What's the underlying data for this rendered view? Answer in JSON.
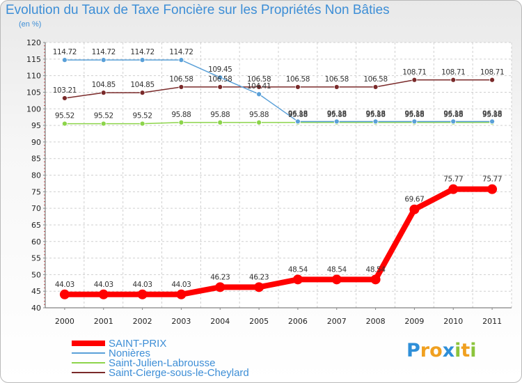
{
  "chart_data": {
    "type": "line",
    "title": "Evolution du Taux de Taxe Foncière sur les Propriétés Non Bâties",
    "subtitle": "(en %)",
    "x": [
      "2000",
      "2001",
      "2002",
      "2003",
      "2004",
      "2005",
      "2006",
      "2007",
      "2008",
      "2009",
      "2010",
      "2011"
    ],
    "ylim": [
      40,
      120
    ],
    "yticks": [
      40,
      45,
      50,
      55,
      60,
      65,
      70,
      75,
      80,
      85,
      90,
      95,
      100,
      105,
      110,
      115,
      120
    ],
    "series": [
      {
        "name": "SAINT-PRIX",
        "color": "#ff0000",
        "values": [
          44.03,
          44.03,
          44.03,
          44.03,
          46.23,
          46.23,
          48.54,
          48.54,
          48.54,
          69.67,
          75.77,
          75.77
        ],
        "labels": [
          "44.03",
          "44.03",
          "44.03",
          "44.03",
          "46.23",
          "46.23",
          "48.54",
          "48.54",
          "48.54",
          "69.67",
          "75.77",
          "75.77"
        ]
      },
      {
        "name": "Nonières",
        "color": "#5aa0d8",
        "values": [
          114.72,
          114.72,
          114.72,
          114.72,
          109.45,
          104.41,
          96.18,
          96.18,
          96.18,
          96.18,
          96.18,
          96.18
        ],
        "labels": [
          "114.72",
          "114.72",
          "114.72",
          "114.72",
          "109.45",
          "104.41",
          "96.18",
          "96.18",
          "96.18",
          "96.18",
          "96.18",
          "96.18"
        ]
      },
      {
        "name": "Saint-Julien-Labrousse",
        "color": "#8cd44a",
        "values": [
          95.52,
          95.52,
          95.52,
          95.88,
          95.88,
          95.88,
          95.88,
          95.88,
          95.88,
          95.88,
          95.88,
          95.88
        ],
        "labels": [
          "95.52",
          "95.52",
          "95.52",
          "95.88",
          "95.88",
          "95.88",
          "95.88",
          "95.88",
          "95.88",
          "95.88",
          "95.88",
          "95.88"
        ]
      },
      {
        "name": "Saint-Cierge-sous-le-Cheylard",
        "color": "#7a2a2a",
        "values": [
          103.21,
          104.85,
          104.85,
          106.58,
          106.58,
          106.58,
          106.58,
          106.58,
          106.58,
          108.71,
          108.71,
          108.71
        ],
        "labels": [
          "103.21",
          "104.85",
          "104.85",
          "106.58",
          "106.58",
          "106.58",
          "106.58",
          "106.58",
          "106.58",
          "108.71",
          "108.71",
          "108.71"
        ]
      }
    ],
    "legend_position": "bottom-left"
  },
  "logo": {
    "letters": [
      "P",
      "r",
      "o",
      "x",
      "i",
      "t",
      "i"
    ],
    "colors": [
      "#2f8fd8",
      "#f0a020",
      "#f0a020",
      "#2f8fd8",
      "#8cc43c",
      "#f0a020",
      "#8cc43c"
    ]
  }
}
